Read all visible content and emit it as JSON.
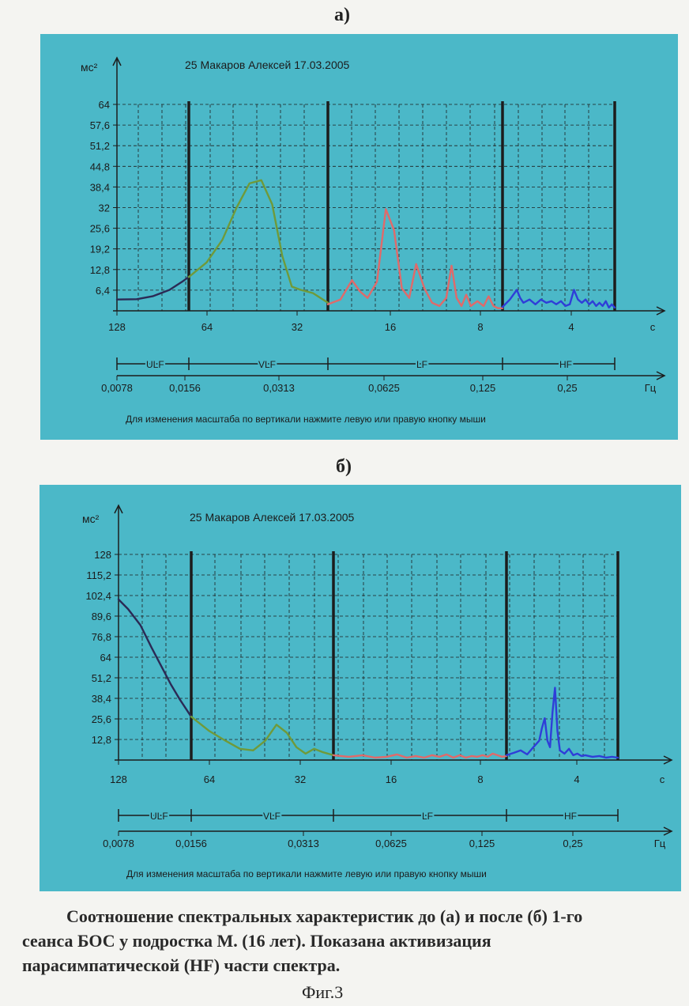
{
  "figure": {
    "label_a": "а)",
    "label_b": "б)",
    "caption_lines": [
      "Соотношение спектральных характеристик до (а) и после (б) 1-го",
      "сеанса БОС у подростка М. (16 лет). Показана активизация",
      "парасимпатической (HF) части спектра."
    ],
    "fig_label": "Фиг.3"
  },
  "colors": {
    "panel_bg": "#4bb8c8",
    "ulf": "#2b2a55",
    "vlf": "#6f9a3a",
    "lf": "#e06a6a",
    "hf": "#2f3ed8",
    "axis": "#1c1c1c"
  },
  "chart_data": [
    {
      "type": "line",
      "title": "25 Макаров Алексей 17.03.2005",
      "ylabel": "мс²",
      "period_axis_label": "с",
      "freq_axis_label": "Гц",
      "yticks": [
        "64",
        "57,6",
        "51,2",
        "44,8",
        "38,4",
        "32",
        "25,6",
        "19,2",
        "12,8",
        "6,4"
      ],
      "ylim": [
        0,
        64
      ],
      "period_ticks": [
        "128",
        "64",
        "32",
        "16",
        "8",
        "4"
      ],
      "freq_ticks": [
        "0,0078",
        "0,0156",
        "0,0313",
        "0,0625",
        "0,125",
        "0,25"
      ],
      "bands": [
        "ULF",
        "VLF",
        "LF",
        "HF"
      ],
      "band_edges_hz": [
        0.0033,
        0.015,
        0.04,
        0.15,
        0.4
      ],
      "hint": "Для изменения масштаба по вертикали нажмите левую или правую кнопку мыши",
      "series": [
        {
          "band": "ULF",
          "x": [
            0.0033,
            0.005,
            0.007,
            0.01,
            0.013,
            0.015
          ],
          "y": [
            3.5,
            3.6,
            4.5,
            6.5,
            9.0,
            10.5
          ]
        },
        {
          "band": "VLF",
          "x": [
            0.015,
            0.017,
            0.019,
            0.021,
            0.023,
            0.025,
            0.027,
            0.029,
            0.031,
            0.033,
            0.036,
            0.04
          ],
          "y": [
            10.5,
            15,
            22,
            32,
            39.5,
            40.5,
            33,
            17,
            7.5,
            6.5,
            5.5,
            2.5
          ]
        },
        {
          "band": "LF",
          "x": [
            0.04,
            0.044,
            0.048,
            0.051,
            0.054,
            0.058,
            0.062,
            0.066,
            0.07,
            0.074,
            0.078,
            0.083,
            0.088,
            0.093,
            0.098,
            0.102,
            0.106,
            0.11,
            0.114,
            0.118,
            0.124,
            0.13,
            0.135,
            0.14,
            0.145,
            0.15
          ],
          "y": [
            2,
            3.5,
            9.5,
            6,
            4,
            9,
            31.5,
            25,
            7,
            4,
            14.5,
            7,
            2.5,
            1.5,
            4,
            14,
            4,
            1.5,
            5,
            1.5,
            3,
            1.5,
            4.5,
            1.5,
            0.8,
            0.8
          ]
        },
        {
          "band": "HF",
          "x": [
            0.15,
            0.16,
            0.17,
            0.175,
            0.18,
            0.19,
            0.2,
            0.21,
            0.22,
            0.23,
            0.24,
            0.25,
            0.26,
            0.27,
            0.28,
            0.29,
            0.3,
            0.31,
            0.32,
            0.33,
            0.34,
            0.35,
            0.36,
            0.37,
            0.38,
            0.39,
            0.4
          ],
          "y": [
            1.2,
            3.5,
            6.5,
            4,
            2.5,
            3.5,
            2,
            3.5,
            2.5,
            3,
            2,
            3,
            1.5,
            2,
            6.5,
            3.5,
            2.5,
            3.5,
            2,
            3,
            1.5,
            2.5,
            1.5,
            3,
            1,
            2,
            1
          ]
        }
      ]
    },
    {
      "type": "line",
      "title": "25 Макаров Алексей 17.03.2005",
      "ylabel": "мс²",
      "period_axis_label": "с",
      "freq_axis_label": "Гц",
      "yticks": [
        "128",
        "115,2",
        "102,4",
        "89,6",
        "76,8",
        "64",
        "51,2",
        "38,4",
        "25,6",
        "12,8"
      ],
      "ylim": [
        0,
        128
      ],
      "period_ticks": [
        "128",
        "64",
        "32",
        "16",
        "8",
        "4"
      ],
      "freq_ticks": [
        "0,0078",
        "0,0156",
        "0,0313",
        "0,0625",
        "0,125",
        "0,25"
      ],
      "bands": [
        "ULF",
        "VLF",
        "LF",
        "HF"
      ],
      "band_edges_hz": [
        0.0078,
        0.015,
        0.04,
        0.15,
        0.4
      ],
      "hint": "Для изменения масштаба по вертикали нажмите левую или правую кнопку мыши",
      "series": [
        {
          "band": "ULF",
          "x": [
            0.0078,
            0.0085,
            0.0095,
            0.0105,
            0.0115,
            0.0125,
            0.0135,
            0.015
          ],
          "y": [
            100,
            94,
            84,
            70,
            58,
            47,
            38,
            27
          ]
        },
        {
          "band": "VLF",
          "x": [
            0.015,
            0.017,
            0.019,
            0.021,
            0.023,
            0.025,
            0.027,
            0.029,
            0.031,
            0.033,
            0.035,
            0.037,
            0.04
          ],
          "y": [
            27,
            18,
            12,
            7,
            6,
            12,
            22,
            17,
            8,
            4,
            7,
            5,
            3
          ]
        },
        {
          "band": "LF",
          "x": [
            0.04,
            0.045,
            0.05,
            0.055,
            0.06,
            0.065,
            0.07,
            0.075,
            0.08,
            0.085,
            0.09,
            0.095,
            0.1,
            0.105,
            0.11,
            0.115,
            0.12,
            0.125,
            0.13,
            0.135,
            0.14,
            0.145,
            0.15
          ],
          "y": [
            3,
            2,
            3,
            1.5,
            2,
            3.5,
            1.5,
            2.5,
            1.5,
            3,
            2,
            3.5,
            1.5,
            3,
            1.5,
            2.5,
            2,
            3,
            2,
            4,
            3,
            2,
            2.5
          ]
        },
        {
          "band": "HF",
          "x": [
            0.15,
            0.16,
            0.17,
            0.18,
            0.19,
            0.2,
            0.205,
            0.21,
            0.215,
            0.22,
            0.225,
            0.23,
            0.235,
            0.24,
            0.25,
            0.26,
            0.27,
            0.28,
            0.29,
            0.3,
            0.32,
            0.34,
            0.36,
            0.38,
            0.4
          ],
          "y": [
            3,
            4.5,
            6,
            3.5,
            8,
            12,
            20,
            26,
            12,
            8,
            30,
            45,
            18,
            6,
            4,
            7,
            3,
            4,
            2.5,
            3,
            2,
            2.5,
            1.5,
            2,
            1.5
          ]
        }
      ]
    }
  ]
}
